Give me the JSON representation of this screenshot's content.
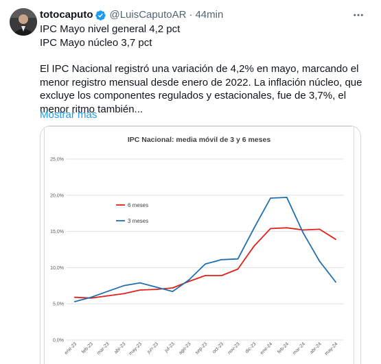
{
  "tweet": {
    "author_name": "totocaputo",
    "handle": "@LuisCaputoAR",
    "separator": "·",
    "time": "44min",
    "lines": [
      "IPC Mayo nivel general 4,2 pct",
      "IPC Mayo núcleo 3,7 pct"
    ],
    "body": "El IPC Nacional registró una variación de 4,2% en mayo, marcando el menor registro mensual desde enero de 2022. La inflación núcleo, que excluye los componentes regulados y estacionales, fue de 3,7%, el menor ritmo también...",
    "show_more": "Mostrar más",
    "icons": {
      "verified": "verified-badge-icon",
      "more": "more-options-icon"
    },
    "colors": {
      "link": "#1d9bf0",
      "verified": "#1d9bf0",
      "secondary_text": "#536471"
    }
  },
  "chart_data": {
    "type": "line",
    "title": "IPC Nacional: media móvil de 3 y 6 meses",
    "x": [
      "ene-23",
      "feb-23",
      "mar-23",
      "abr-23",
      "may-23",
      "jun-23",
      "jul-23",
      "ago-23",
      "sep-23",
      "oct-23",
      "nov-23",
      "dic-23",
      "ene-24",
      "feb-24",
      "mar-24",
      "abr-24",
      "may-24"
    ],
    "yticks": [
      "0,0%",
      "5,0%",
      "10,0%",
      "15,0%",
      "20,0%",
      "25,0%"
    ],
    "ylim": [
      0,
      25
    ],
    "grid": true,
    "legend_position": "left-middle",
    "series": [
      {
        "name": "6 meses",
        "color": "#e0201b",
        "values": [
          5.9,
          5.8,
          6.1,
          6.4,
          6.9,
          7.0,
          7.2,
          8.1,
          8.9,
          8.9,
          9.8,
          13.0,
          15.4,
          15.5,
          15.2,
          15.3,
          13.9
        ]
      },
      {
        "name": "3 meses",
        "color": "#1f6fae",
        "values": [
          5.3,
          5.9,
          6.7,
          7.5,
          7.9,
          7.3,
          6.7,
          8.3,
          10.5,
          11.1,
          11.2,
          15.5,
          19.6,
          19.7,
          14.8,
          10.9,
          8.0
        ]
      }
    ]
  }
}
